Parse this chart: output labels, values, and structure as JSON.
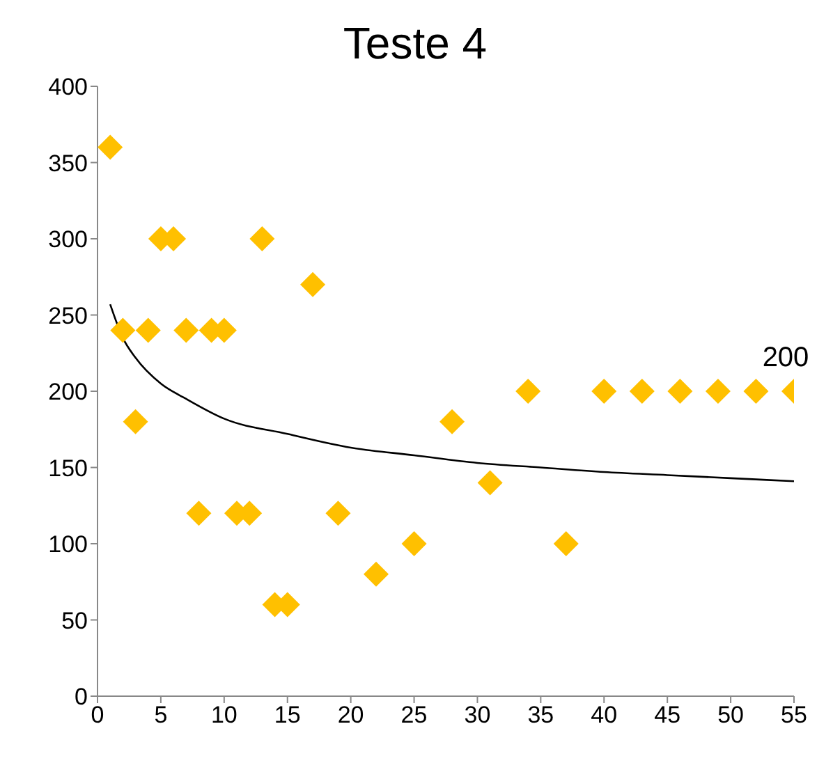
{
  "chart_data": {
    "type": "scatter",
    "title": "Teste 4",
    "xlim": [
      0,
      55
    ],
    "xticks": [
      0,
      5,
      10,
      15,
      20,
      25,
      30,
      35,
      40,
      45,
      50,
      55
    ],
    "ylim": [
      0,
      400
    ],
    "yticks": [
      0,
      50,
      100,
      150,
      200,
      250,
      300,
      350,
      400
    ],
    "grid": false,
    "marker": "diamond",
    "series": [
      {
        "color": "#ffc000",
        "x": [
          1,
          2,
          3,
          4,
          5,
          6,
          7,
          8,
          9,
          10,
          11,
          12,
          13,
          14,
          15,
          17,
          19,
          22,
          25,
          28,
          31,
          34,
          37,
          40,
          43,
          46,
          49,
          52,
          55
        ],
        "values": [
          360,
          240,
          180,
          240,
          300,
          300,
          240,
          120,
          240,
          240,
          120,
          120,
          300,
          60,
          60,
          270,
          120,
          80,
          100,
          180,
          140,
          200,
          100,
          200,
          200,
          200,
          200,
          200,
          200
        ]
      },
      {
        "type": "line",
        "color": "#000000",
        "marker": "none",
        "x": [
          1,
          2,
          3,
          5,
          7,
          10,
          15,
          20,
          25,
          30,
          35,
          40,
          45,
          50,
          55
        ],
        "values": [
          257,
          235,
          222,
          205,
          195,
          182,
          172,
          163,
          158,
          153,
          150,
          147,
          145,
          143,
          141
        ]
      }
    ],
    "annotations": [
      {
        "text": "200",
        "x": 55,
        "y": 200
      }
    ]
  }
}
